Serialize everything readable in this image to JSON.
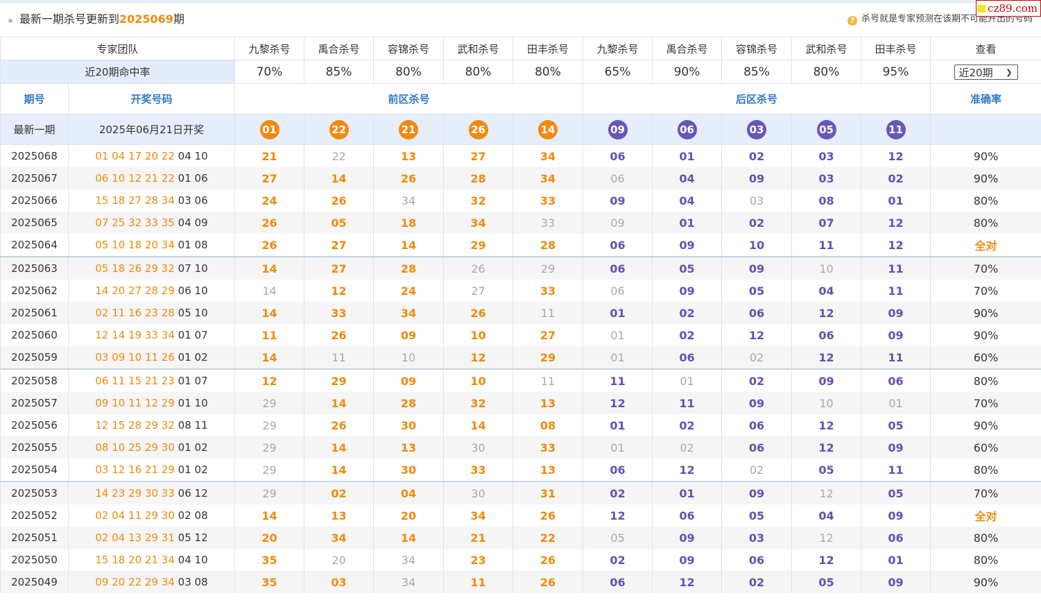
{
  "header": {
    "title_prefix": "最新一期杀号更新到",
    "title_period": "2025069",
    "title_suffix": "期",
    "note": "杀号就是专家预测在该期不可能开出的号码",
    "logo": "cz89.com"
  },
  "experts_label": "专家团队",
  "experts": [
    "九黎杀号",
    "禹合杀号",
    "容锦杀号",
    "武和杀号",
    "田丰杀号",
    "九黎杀号",
    "禹合杀号",
    "容锦杀号",
    "武和杀号",
    "田丰杀号"
  ],
  "view_label": "查看",
  "rate_label": "近20期命中率",
  "rates": [
    "70%",
    "85%",
    "80%",
    "80%",
    "80%",
    "65%",
    "90%",
    "85%",
    "80%",
    "95%"
  ],
  "period_select": "近20期",
  "columns": {
    "period": "期号",
    "draw": "开奖号码",
    "front": "前区杀号",
    "back": "后区杀号",
    "accuracy": "准确率"
  },
  "latest": {
    "label": "最新一期",
    "date": "2025年06月21日开奖",
    "front": [
      "01",
      "22",
      "21",
      "26",
      "14"
    ],
    "back": [
      "09",
      "06",
      "03",
      "05",
      "11"
    ]
  },
  "rows": [
    {
      "period": "2025068",
      "draw_front": "01 04 17 20 22",
      "draw_back": "04 10",
      "kills": [
        "21",
        "22",
        "13",
        "27",
        "34",
        "06",
        "01",
        "02",
        "03",
        "12"
      ],
      "miss": [
        1
      ],
      "acc": "90%"
    },
    {
      "period": "2025067",
      "draw_front": "06 10 12 21 22",
      "draw_back": "01 06",
      "kills": [
        "27",
        "14",
        "26",
        "28",
        "34",
        "06",
        "04",
        "09",
        "03",
        "02"
      ],
      "miss": [
        5
      ],
      "acc": "90%"
    },
    {
      "period": "2025066",
      "draw_front": "15 18 27 28 34",
      "draw_back": "03 06",
      "kills": [
        "24",
        "26",
        "34",
        "32",
        "33",
        "09",
        "04",
        "03",
        "08",
        "01"
      ],
      "miss": [
        2,
        7
      ],
      "acc": "80%"
    },
    {
      "period": "2025065",
      "draw_front": "07 25 32 33 35",
      "draw_back": "04 09",
      "kills": [
        "26",
        "05",
        "18",
        "34",
        "33",
        "09",
        "01",
        "02",
        "07",
        "12"
      ],
      "miss": [
        4,
        5
      ],
      "acc": "80%"
    },
    {
      "period": "2025064",
      "draw_front": "05 10 18 20 34",
      "draw_back": "01 08",
      "kills": [
        "26",
        "27",
        "14",
        "29",
        "28",
        "06",
        "09",
        "10",
        "11",
        "12"
      ],
      "miss": [],
      "acc": "全对"
    },
    {
      "period": "2025063",
      "draw_front": "05 18 26 29 32",
      "draw_back": "07 10",
      "kills": [
        "14",
        "27",
        "28",
        "26",
        "29",
        "06",
        "05",
        "09",
        "10",
        "11"
      ],
      "miss": [
        3,
        4,
        8
      ],
      "acc": "70%"
    },
    {
      "period": "2025062",
      "draw_front": "14 20 27 28 29",
      "draw_back": "06 10",
      "kills": [
        "14",
        "12",
        "24",
        "27",
        "33",
        "06",
        "09",
        "05",
        "04",
        "11"
      ],
      "miss": [
        0,
        3,
        5
      ],
      "acc": "70%"
    },
    {
      "period": "2025061",
      "draw_front": "02 11 16 23 28",
      "draw_back": "05 10",
      "kills": [
        "14",
        "33",
        "34",
        "26",
        "11",
        "01",
        "02",
        "06",
        "12",
        "09"
      ],
      "miss": [
        4
      ],
      "acc": "90%"
    },
    {
      "period": "2025060",
      "draw_front": "12 14 19 33 34",
      "draw_back": "01 07",
      "kills": [
        "11",
        "26",
        "09",
        "10",
        "27",
        "01",
        "02",
        "12",
        "06",
        "09"
      ],
      "miss": [
        5
      ],
      "acc": "90%"
    },
    {
      "period": "2025059",
      "draw_front": "03 09 10 11 26",
      "draw_back": "01 02",
      "kills": [
        "14",
        "11",
        "10",
        "12",
        "29",
        "01",
        "06",
        "02",
        "12",
        "11"
      ],
      "miss": [
        1,
        2,
        5,
        7
      ],
      "acc": "60%"
    },
    {
      "period": "2025058",
      "draw_front": "06 11 15 21 23",
      "draw_back": "01 07",
      "kills": [
        "12",
        "29",
        "09",
        "10",
        "11",
        "11",
        "01",
        "02",
        "09",
        "06"
      ],
      "miss": [
        4,
        6
      ],
      "acc": "80%"
    },
    {
      "period": "2025057",
      "draw_front": "09 10 11 12 29",
      "draw_back": "01 10",
      "kills": [
        "29",
        "14",
        "28",
        "32",
        "13",
        "12",
        "11",
        "09",
        "10",
        "01"
      ],
      "miss": [
        0,
        8,
        9
      ],
      "acc": "70%"
    },
    {
      "period": "2025056",
      "draw_front": "12 15 28 29 32",
      "draw_back": "08 11",
      "kills": [
        "29",
        "26",
        "30",
        "14",
        "08",
        "01",
        "02",
        "06",
        "12",
        "05"
      ],
      "miss": [
        0
      ],
      "acc": "90%"
    },
    {
      "period": "2025055",
      "draw_front": "08 10 25 29 30",
      "draw_back": "01 02",
      "kills": [
        "29",
        "14",
        "13",
        "30",
        "33",
        "01",
        "02",
        "06",
        "12",
        "09"
      ],
      "miss": [
        0,
        3,
        5,
        6
      ],
      "acc": "60%"
    },
    {
      "period": "2025054",
      "draw_front": "03 12 16 21 29",
      "draw_back": "01 02",
      "kills": [
        "29",
        "14",
        "30",
        "33",
        "13",
        "06",
        "12",
        "02",
        "05",
        "11"
      ],
      "miss": [
        0,
        7
      ],
      "acc": "80%"
    },
    {
      "period": "2025053",
      "draw_front": "14 23 29 30 33",
      "draw_back": "06 12",
      "kills": [
        "29",
        "02",
        "04",
        "30",
        "31",
        "02",
        "01",
        "09",
        "12",
        "05"
      ],
      "miss": [
        0,
        3,
        8
      ],
      "acc": "70%"
    },
    {
      "period": "2025052",
      "draw_front": "02 04 11 29 30",
      "draw_back": "02 08",
      "kills": [
        "14",
        "13",
        "20",
        "34",
        "26",
        "12",
        "06",
        "05",
        "04",
        "09"
      ],
      "miss": [],
      "acc": "全对"
    },
    {
      "period": "2025051",
      "draw_front": "02 04 13 29 31",
      "draw_back": "05 12",
      "kills": [
        "20",
        "34",
        "14",
        "21",
        "22",
        "05",
        "09",
        "03",
        "12",
        "06"
      ],
      "miss": [
        5,
        8
      ],
      "acc": "80%"
    },
    {
      "period": "2025050",
      "draw_front": "15 18 20 21 34",
      "draw_back": "04 10",
      "kills": [
        "35",
        "20",
        "34",
        "23",
        "26",
        "02",
        "09",
        "06",
        "12",
        "01"
      ],
      "miss": [
        1,
        2
      ],
      "acc": "80%"
    },
    {
      "period": "2025049",
      "draw_front": "09 20 22 29 34",
      "draw_back": "03 08",
      "kills": [
        "35",
        "03",
        "34",
        "11",
        "26",
        "06",
        "12",
        "02",
        "05",
        "09"
      ],
      "miss": [
        2
      ],
      "acc": "90%"
    }
  ]
}
